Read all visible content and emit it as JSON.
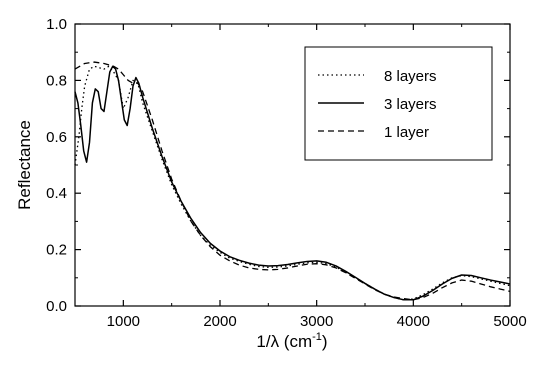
{
  "chart_data": {
    "type": "line",
    "xlabel_main": "1/λ (cm",
    "xlabel_sup": "-1",
    "xlabel_close": ")",
    "ylabel": "Reflectance",
    "xlim": [
      500,
      5000
    ],
    "ylim": [
      0.0,
      1.0
    ],
    "grid": false,
    "legend_position": "top-right",
    "x_ticks": [
      1000,
      2000,
      3000,
      4000,
      5000
    ],
    "x_tick_labels": [
      "1000",
      "2000",
      "3000",
      "4000",
      "5000"
    ],
    "y_ticks": [
      0.0,
      0.2,
      0.4,
      0.6,
      0.8,
      1.0
    ],
    "y_tick_labels": [
      "0.0",
      "0.2",
      "0.4",
      "0.6",
      "0.8",
      "1.0"
    ],
    "series": [
      {
        "name": "8 layers",
        "style": "dotted",
        "x": [
          500,
          540,
          570,
          600,
          650,
          700,
          750,
          800,
          850,
          900,
          950,
          1000,
          1050,
          1100,
          1150,
          1200,
          1300,
          1400,
          1500,
          1600,
          1700,
          1800,
          1900,
          2000,
          2100,
          2200,
          2300,
          2400,
          2500,
          2600,
          2700,
          2800,
          2900,
          3000,
          3100,
          3200,
          3300,
          3400,
          3500,
          3600,
          3700,
          3800,
          3900,
          4000,
          4100,
          4200,
          4300,
          4400,
          4500,
          4600,
          4700,
          4800,
          4900,
          5000
        ],
        "y": [
          0.5,
          0.6,
          0.7,
          0.78,
          0.84,
          0.85,
          0.845,
          0.84,
          0.85,
          0.83,
          0.8,
          0.7,
          0.74,
          0.8,
          0.79,
          0.72,
          0.62,
          0.52,
          0.43,
          0.36,
          0.3,
          0.25,
          0.215,
          0.19,
          0.17,
          0.158,
          0.148,
          0.14,
          0.137,
          0.138,
          0.142,
          0.148,
          0.153,
          0.155,
          0.15,
          0.138,
          0.12,
          0.1,
          0.08,
          0.06,
          0.042,
          0.03,
          0.022,
          0.025,
          0.04,
          0.06,
          0.082,
          0.1,
          0.108,
          0.104,
          0.096,
          0.088,
          0.08,
          0.072
        ]
      },
      {
        "name": "3 layers",
        "style": "solid",
        "x": [
          500,
          530,
          560,
          590,
          620,
          650,
          680,
          710,
          740,
          770,
          800,
          830,
          860,
          890,
          920,
          950,
          980,
          1010,
          1040,
          1070,
          1100,
          1130,
          1160,
          1200,
          1300,
          1400,
          1500,
          1600,
          1700,
          1800,
          1900,
          2000,
          2100,
          2200,
          2300,
          2400,
          2500,
          2600,
          2700,
          2800,
          2900,
          3000,
          3100,
          3200,
          3300,
          3400,
          3500,
          3600,
          3700,
          3800,
          3900,
          4000,
          4100,
          4200,
          4300,
          4400,
          4500,
          4600,
          4700,
          4800,
          4900,
          5000
        ],
        "y": [
          0.76,
          0.72,
          0.64,
          0.55,
          0.51,
          0.58,
          0.72,
          0.77,
          0.76,
          0.7,
          0.69,
          0.76,
          0.83,
          0.85,
          0.84,
          0.8,
          0.73,
          0.66,
          0.64,
          0.7,
          0.78,
          0.81,
          0.79,
          0.74,
          0.63,
          0.53,
          0.44,
          0.37,
          0.31,
          0.26,
          0.222,
          0.195,
          0.175,
          0.162,
          0.152,
          0.145,
          0.142,
          0.143,
          0.147,
          0.153,
          0.158,
          0.16,
          0.155,
          0.142,
          0.123,
          0.102,
          0.08,
          0.06,
          0.042,
          0.03,
          0.022,
          0.022,
          0.035,
          0.055,
          0.078,
          0.098,
          0.11,
          0.108,
          0.1,
          0.092,
          0.085,
          0.078
        ]
      },
      {
        "name": "1 layer",
        "style": "dashed",
        "x": [
          500,
          600,
          700,
          800,
          850,
          900,
          950,
          1000,
          1050,
          1100,
          1150,
          1200,
          1300,
          1400,
          1500,
          1600,
          1700,
          1800,
          1900,
          2000,
          2100,
          2200,
          2300,
          2400,
          2500,
          2600,
          2700,
          2800,
          2900,
          3000,
          3100,
          3200,
          3300,
          3400,
          3500,
          3600,
          3700,
          3800,
          3900,
          4000,
          4100,
          4200,
          4300,
          4400,
          4500,
          4600,
          4700,
          4800,
          4900,
          5000
        ],
        "y": [
          0.84,
          0.86,
          0.865,
          0.86,
          0.855,
          0.85,
          0.84,
          0.82,
          0.8,
          0.79,
          0.79,
          0.76,
          0.66,
          0.55,
          0.45,
          0.37,
          0.3,
          0.25,
          0.21,
          0.18,
          0.16,
          0.145,
          0.135,
          0.13,
          0.128,
          0.13,
          0.135,
          0.142,
          0.148,
          0.15,
          0.146,
          0.135,
          0.118,
          0.098,
          0.078,
          0.058,
          0.042,
          0.032,
          0.026,
          0.022,
          0.03,
          0.045,
          0.065,
          0.082,
          0.092,
          0.088,
          0.078,
          0.068,
          0.06,
          0.052
        ]
      }
    ]
  }
}
